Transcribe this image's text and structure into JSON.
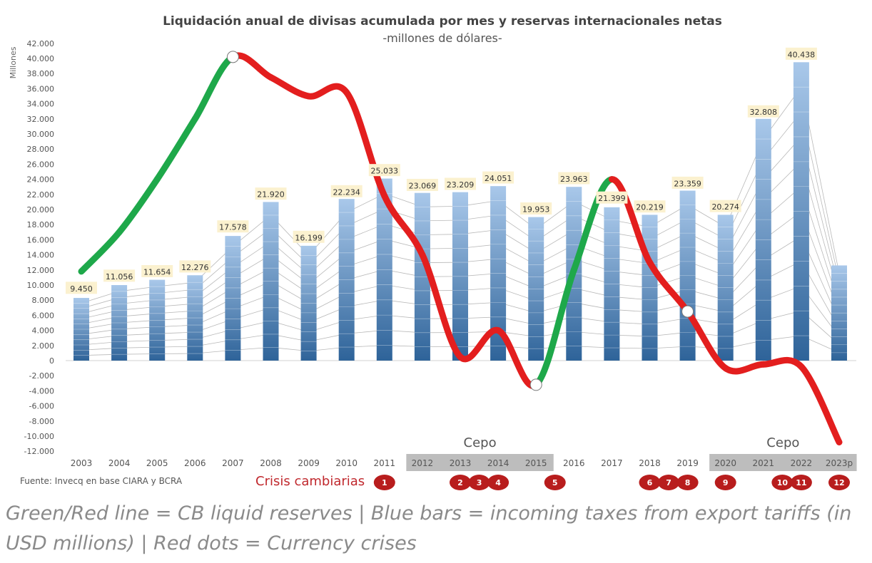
{
  "title": "Liquidación anual de divisas acumulada por mes y reservas internacionales netas",
  "subtitle": "-millones de dólares-",
  "source": "Fuente: Invecq en base CIARA y BCRA",
  "crisis_title": "Crisis cambiarias",
  "cepo_label": "Cepo",
  "caption": "Green/Red line = CB liquid reserves | Blue bars = incoming taxes from export tariffs (in USD millions) | Red dots = Currency crises",
  "colors": {
    "bar_light": "#a9c8ea",
    "bar_dark": "#2e6399",
    "line_up": "#1ea84a",
    "line_down": "#e31e1e",
    "crisis_dot": "#b81d1d",
    "cepo_band": "#bdbdbd",
    "label_bg": "#fbf1cf"
  },
  "chart_data": {
    "type": "bar",
    "ylabel": "Millones",
    "ylim": [
      -12000,
      42000
    ],
    "yticks": [
      "42.000",
      "40.000",
      "38.000",
      "36.000",
      "34.000",
      "32.000",
      "30.000",
      "28.000",
      "26.000",
      "24.000",
      "22.000",
      "20.000",
      "18.000",
      "16.000",
      "14.000",
      "12.000",
      "10.000",
      "8.000",
      "6.000",
      "4.000",
      "2.000",
      "0",
      "-2.000",
      "-4.000",
      "-6.000",
      "-8.000",
      "-10.000",
      "-12.000"
    ],
    "categories": [
      "2003",
      "2004",
      "2005",
      "2006",
      "2007",
      "2008",
      "2009",
      "2010",
      "2011",
      "2012",
      "2013",
      "2014",
      "2015",
      "2016",
      "2017",
      "2018",
      "2019",
      "2020",
      "2021",
      "2022",
      "2023p"
    ],
    "values": [
      9450,
      11056,
      11654,
      12276,
      17578,
      21920,
      16199,
      22234,
      25033,
      23069,
      23209,
      24051,
      19953,
      23963,
      21399,
      20219,
      23359,
      20274,
      32808,
      40438,
      12600
    ],
    "data_labels": [
      "9.450",
      "11.056",
      "11.654",
      "12.276",
      "17.578",
      "21.920",
      "16.199",
      "22.234",
      "25.033",
      "23.069",
      "23.209",
      "24.051",
      "19.953",
      "23.963",
      "21.399",
      "20.219",
      "23.359",
      "20.274",
      "32.808",
      "40.438",
      ""
    ],
    "bar_top_values": [
      8300,
      10000,
      10700,
      11300,
      16500,
      21000,
      15200,
      21400,
      24100,
      22200,
      22300,
      23100,
      19000,
      23000,
      20300,
      19300,
      22500,
      19300,
      32000,
      39500,
      12600
    ],
    "reserves_line": {
      "x": [
        2003,
        2004,
        2005,
        2006,
        2007,
        2008,
        2009,
        2010,
        2011,
        2012,
        2013,
        2014,
        2015,
        2016,
        2017,
        2018,
        2019,
        2020,
        2021,
        2022,
        2023
      ],
      "y": [
        11800,
        17000,
        24000,
        32000,
        40200,
        37500,
        35000,
        35500,
        21800,
        14000,
        500,
        4000,
        -3200,
        12000,
        24000,
        13000,
        6500,
        -1000,
        -500,
        -800,
        -10800
      ],
      "trend": [
        "up",
        "up",
        "up",
        "up",
        "down",
        "down",
        "down",
        "down",
        "down",
        "down",
        "down",
        "down",
        "up",
        "up",
        "down",
        "down",
        "down",
        "down",
        "down",
        "down"
      ],
      "turning_points": [
        4,
        12,
        16
      ]
    },
    "cepo_periods": [
      {
        "label": "Cepo",
        "from": "2012",
        "to": "2015"
      },
      {
        "label": "Cepo",
        "from": "2020",
        "to": "2023p"
      }
    ],
    "crises": [
      {
        "label": "1",
        "year": "2011"
      },
      {
        "label": "2",
        "year": "2013"
      },
      {
        "label": "3",
        "year": "2013.5"
      },
      {
        "label": "4",
        "year": "2014"
      },
      {
        "label": "5",
        "year": "2015.5"
      },
      {
        "label": "6",
        "year": "2018"
      },
      {
        "label": "7",
        "year": "2018.5"
      },
      {
        "label": "8",
        "year": "2019"
      },
      {
        "label": "9",
        "year": "2020"
      },
      {
        "label": "10",
        "year": "2021.5"
      },
      {
        "label": "11",
        "year": "2022"
      },
      {
        "label": "12",
        "year": "2023"
      }
    ]
  }
}
